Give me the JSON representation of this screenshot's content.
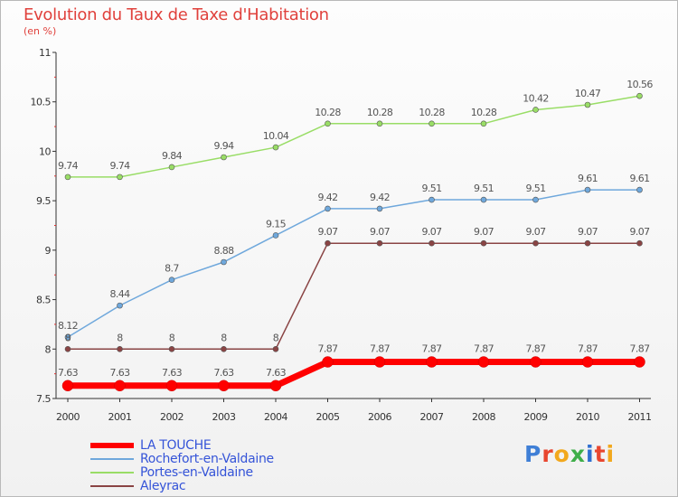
{
  "header": {
    "title": "Evolution du Taux de Taxe d'Habitation",
    "subtitle": "(en %)"
  },
  "logo": {
    "text": "Proxiti"
  },
  "chart_data": {
    "type": "line",
    "title": "Evolution du Taux de Taxe d'Habitation",
    "subtitle": "(en %)",
    "x": [
      "2000",
      "2001",
      "2002",
      "2003",
      "2004",
      "2005",
      "2006",
      "2007",
      "2008",
      "2009",
      "2010",
      "2011"
    ],
    "ylim": [
      7.5,
      11
    ],
    "yticks": [
      "7.5",
      "8",
      "8.5",
      "9",
      "9.5",
      "10",
      "10.5",
      "11"
    ],
    "grid": false,
    "legend_position": "bottom-left",
    "series": [
      {
        "name": "LA TOUCHE",
        "color": "#ff0000",
        "values": [
          7.63,
          7.63,
          7.63,
          7.63,
          7.63,
          7.87,
          7.87,
          7.87,
          7.87,
          7.87,
          7.87,
          7.87
        ],
        "labels": [
          "7.63",
          "7.63",
          "7.63",
          "7.63",
          "7.63",
          "7.87",
          "7.87",
          "7.87",
          "7.87",
          "7.87",
          "7.87",
          "7.87"
        ]
      },
      {
        "name": "Rochefort-en-Valdaine",
        "color": "#6fa8dc",
        "values": [
          8.12,
          8.44,
          8.7,
          8.88,
          9.15,
          9.42,
          9.42,
          9.51,
          9.51,
          9.51,
          9.61,
          9.61
        ],
        "labels": [
          "8.12",
          "8.44",
          "8.7",
          "8.88",
          "9.15",
          "9.42",
          "9.42",
          "9.51",
          "9.51",
          "9.51",
          "9.61",
          "9.61"
        ]
      },
      {
        "name": "Portes-en-Valdaine",
        "color": "#99dd66",
        "values": [
          9.74,
          9.74,
          9.84,
          9.94,
          10.04,
          10.28,
          10.28,
          10.28,
          10.28,
          10.42,
          10.47,
          10.56
        ],
        "labels": [
          "9.74",
          "9.74",
          "9.84",
          "9.94",
          "10.04",
          "10.28",
          "10.28",
          "10.28",
          "10.28",
          "10.42",
          "10.47",
          "10.56"
        ]
      },
      {
        "name": "Aleyrac",
        "color": "#8a4444",
        "values": [
          8,
          8,
          8,
          8,
          8,
          9.07,
          9.07,
          9.07,
          9.07,
          9.07,
          9.07,
          9.07
        ],
        "labels": [
          "8",
          "8",
          "8",
          "8",
          "8",
          "9.07",
          "9.07",
          "9.07",
          "9.07",
          "9.07",
          "9.07",
          "9.07"
        ]
      }
    ]
  }
}
